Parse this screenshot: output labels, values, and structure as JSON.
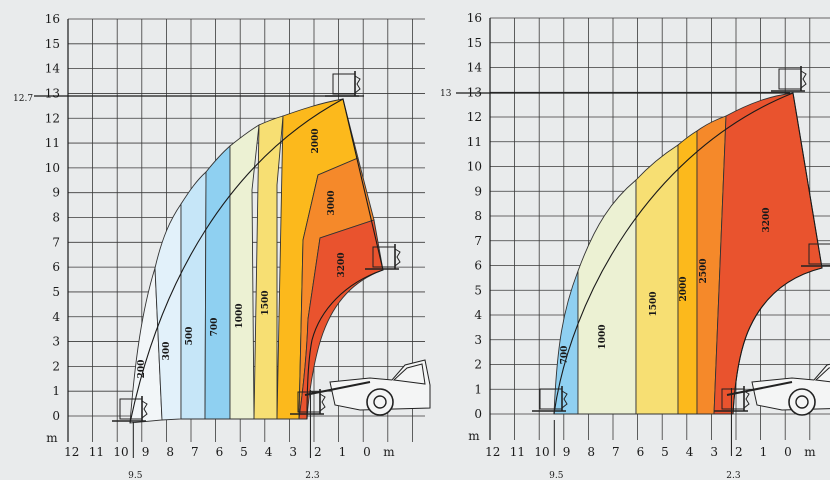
{
  "charts": [
    {
      "type": "load-chart",
      "y_unit": "m",
      "x_unit": "m",
      "y_ticks": [
        0,
        1,
        2,
        3,
        4,
        5,
        6,
        7,
        8,
        9,
        10,
        11,
        12,
        13,
        14,
        15,
        16
      ],
      "x_ticks": [
        12,
        11,
        10,
        9,
        8,
        7,
        6,
        5,
        4,
        3,
        2,
        1,
        0
      ],
      "max_height_label": "12.7",
      "max_height_value": 12.7,
      "max_reach_label": "9.5",
      "max_reach_value": 9.5,
      "pivot_label": "2.3",
      "pivot_value": 2.3,
      "zones": [
        {
          "label": "200",
          "color": "#f2f6f8"
        },
        {
          "label": "300",
          "color": "#e2f1fa"
        },
        {
          "label": "500",
          "color": "#c6e6f8"
        },
        {
          "label": "700",
          "color": "#8fd0f1"
        },
        {
          "label": "1000",
          "color": "#ecf1d3"
        },
        {
          "label": "1500",
          "color": "#f7df73"
        },
        {
          "label": "2000",
          "color": "#fcb91c"
        },
        {
          "label": "3000",
          "color": "#f5892a"
        },
        {
          "label": "3200",
          "color": "#e9532e"
        }
      ]
    },
    {
      "type": "load-chart",
      "y_unit": "m",
      "x_unit": "m",
      "y_ticks": [
        0,
        1,
        2,
        3,
        4,
        5,
        6,
        7,
        8,
        9,
        10,
        11,
        12,
        13,
        14,
        15,
        16
      ],
      "x_ticks": [
        12,
        11,
        10,
        9,
        8,
        7,
        6,
        5,
        4,
        3,
        2,
        1,
        0
      ],
      "max_height_label": "13",
      "max_height_value": 13,
      "max_reach_label": "9.5",
      "max_reach_value": 9.5,
      "pivot_label": "2.3",
      "pivot_value": 2.3,
      "zones": [
        {
          "label": "700",
          "color": "#8fd0f1"
        },
        {
          "label": "1000",
          "color": "#ecf1d3"
        },
        {
          "label": "1500",
          "color": "#f7df73"
        },
        {
          "label": "2000",
          "color": "#fcb91c"
        },
        {
          "label": "2500",
          "color": "#f5892a"
        },
        {
          "label": "3200",
          "color": "#e9532e"
        }
      ]
    }
  ],
  "chart_data": [
    {
      "type": "area",
      "y_range": [
        0,
        16
      ],
      "x_range": [
        12,
        0
      ],
      "capacities_kg": [
        200,
        300,
        500,
        700,
        1000,
        1500,
        2000,
        3000,
        3200
      ],
      "max_height_m": 12.7,
      "max_reach_m": 9.5
    },
    {
      "type": "area",
      "y_range": [
        0,
        16
      ],
      "x_range": [
        12,
        0
      ],
      "capacities_kg": [
        700,
        1000,
        1500,
        2000,
        2500,
        3200
      ],
      "max_height_m": 13,
      "max_reach_m": 9.5
    }
  ]
}
